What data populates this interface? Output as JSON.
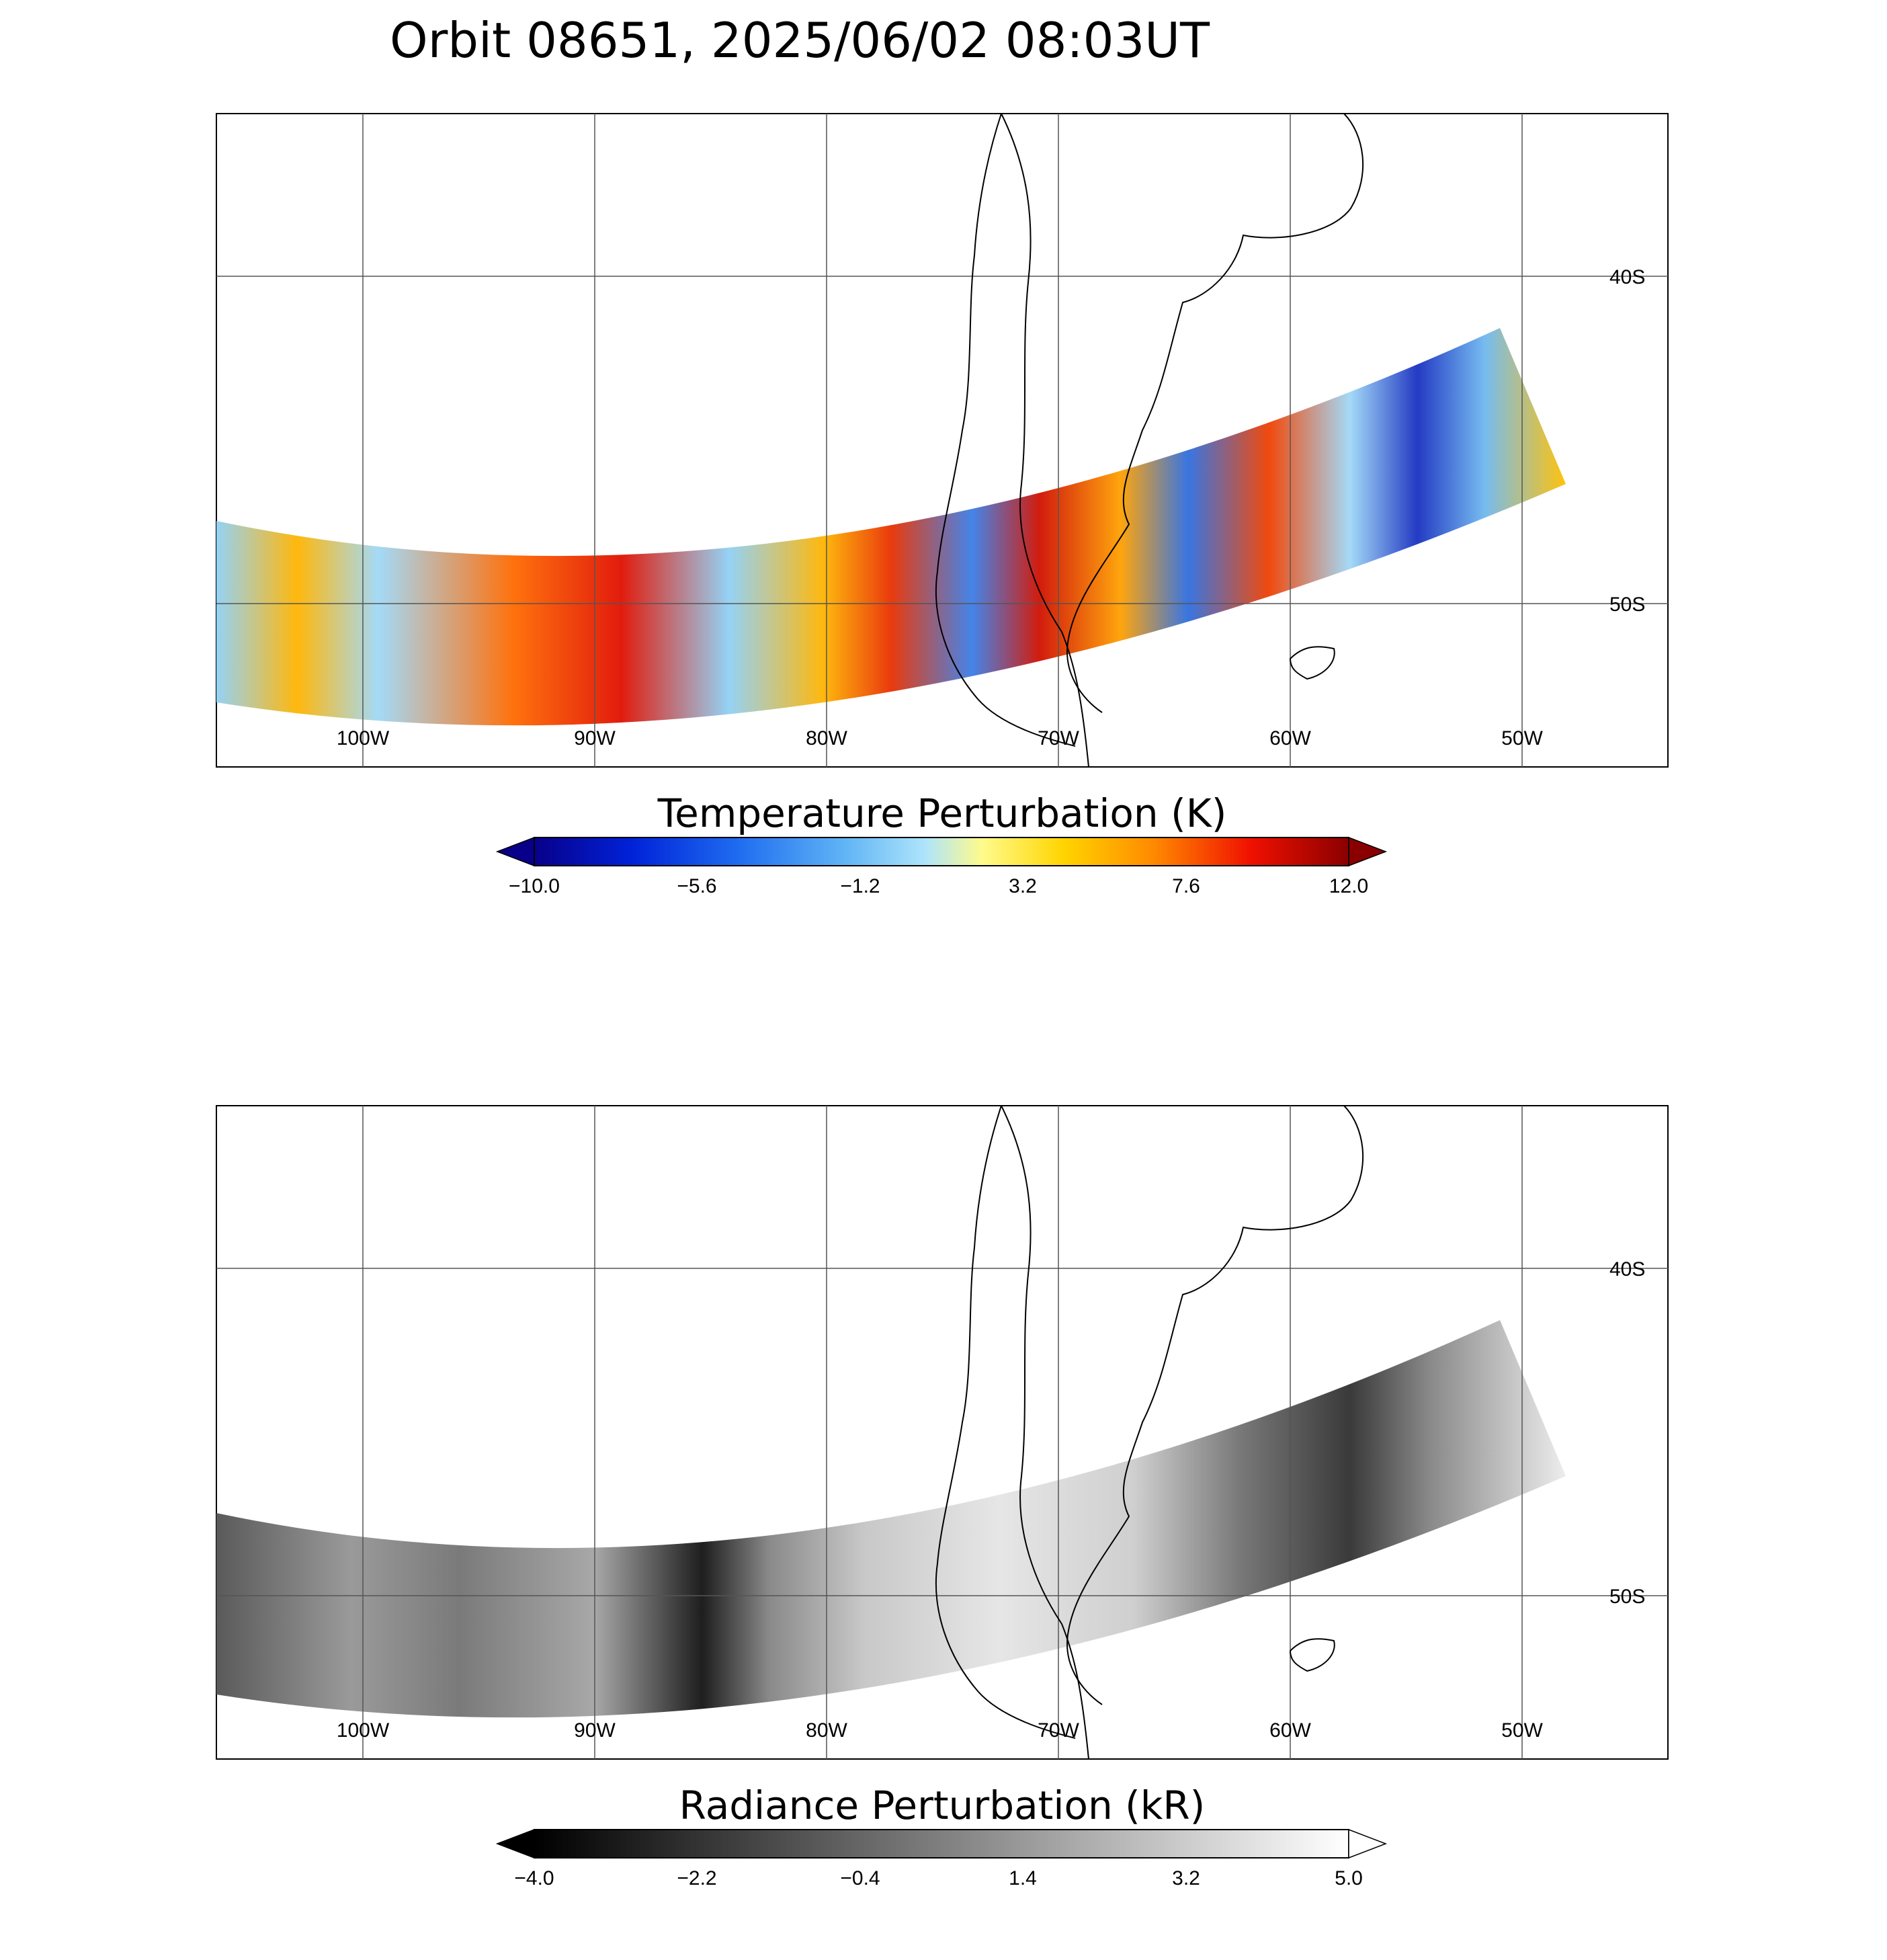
{
  "title": "Orbit 08651, 2025/06/02 08:03UT",
  "map": {
    "lon_labels": [
      "100W",
      "90W",
      "80W",
      "70W",
      "60W",
      "50W"
    ],
    "lat_labels": [
      "40S",
      "50S"
    ]
  },
  "temperature_panel": {
    "colorbar_title": "Temperature Perturbation (K)",
    "ticks": [
      "−10.0",
      "−5.6",
      "−1.2",
      "3.2",
      "7.6",
      "12.0"
    ],
    "range": [
      -10.0,
      12.0
    ],
    "colors": [
      "#08008a",
      "#0022d8",
      "#1f6cf0",
      "#5fb4f5",
      "#aee4fb",
      "#fffb8c",
      "#ffd400",
      "#ff8a00",
      "#f01000",
      "#8a0000"
    ]
  },
  "radiance_panel": {
    "colorbar_title": "Radiance Perturbation (kR)",
    "ticks": [
      "−4.0",
      "−2.2",
      "−0.4",
      "1.4",
      "3.2",
      "5.0"
    ],
    "range": [
      -4.0,
      5.0
    ],
    "colors": [
      "#000000",
      "#ffffff"
    ]
  }
}
